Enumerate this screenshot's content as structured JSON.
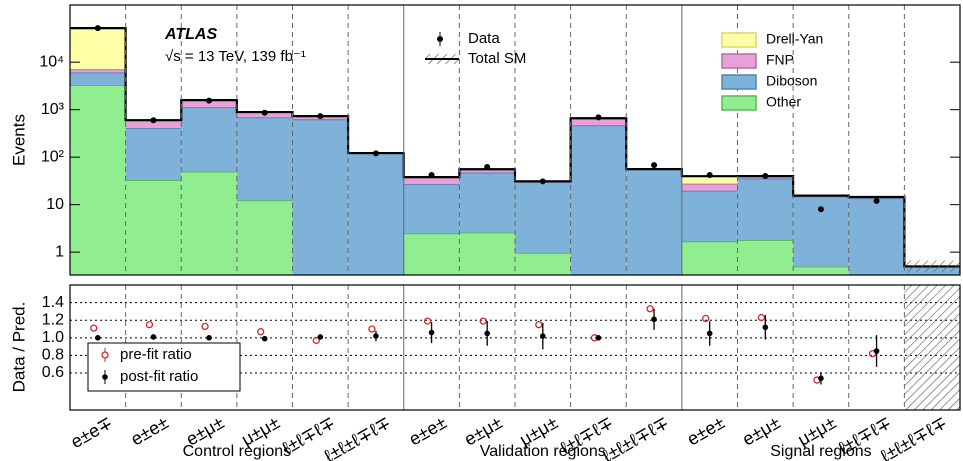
{
  "chart_data": {
    "type": "stacked_histogram",
    "ylabel": "Events",
    "log_y": true,
    "ylim": [
      0.33,
      160000
    ],
    "yticks": [
      1,
      10,
      {
        "value": 100,
        "label": "10²"
      },
      {
        "value": 1000,
        "label": "10³"
      },
      {
        "value": 10000,
        "label": "10⁴"
      }
    ],
    "annotations": [
      "ATLAS",
      "√s = 13 TeV, 139 fb⁻¹"
    ],
    "groups": [
      {
        "label": "Control regions",
        "categories": [
          "e±e∓",
          "e±e±",
          "e±μ±",
          "μ±μ±",
          "ℓ±ℓ∓ℓ∓",
          "ℓ±ℓ±ℓ∓ℓ∓"
        ]
      },
      {
        "label": "Validation regions",
        "categories": [
          "e±e±",
          "e±μ±",
          "μ±μ±",
          "ℓ±ℓ∓ℓ∓",
          "ℓ±ℓ±ℓ∓ℓ∓"
        ]
      },
      {
        "label": "Signal regions",
        "categories": [
          "e±e±",
          "e±μ±",
          "μ±μ±",
          "ℓ±ℓ∓ℓ∓",
          "ℓ±ℓ±ℓ∓ℓ∓"
        ]
      }
    ],
    "stack": [
      {
        "name": "Other",
        "color": "#90ee90",
        "edgecolor": "#5cb85c",
        "values": [
          3300,
          33,
          50,
          12.4,
          0,
          0,
          2.5,
          2.6,
          0.97,
          0,
          0,
          1.7,
          1.8,
          0.5,
          0,
          0
        ]
      },
      {
        "name": "Diboson",
        "color": "#7fb2d8",
        "edgecolor": "#4f86b4",
        "values": [
          2800,
          377,
          1080,
          678,
          630,
          120,
          24.5,
          45,
          29,
          470,
          56,
          18,
          34,
          14.5,
          13.7,
          0.5
        ]
      },
      {
        "name": "FNP",
        "color": "#e8a0d8",
        "edgecolor": "#b070a8",
        "values": [
          1000,
          190,
          460,
          200,
          100,
          2,
          11,
          8,
          1,
          190,
          0,
          8,
          4,
          0.5,
          0.8,
          0
        ]
      },
      {
        "name": "Drell-Yan",
        "color": "#ffffa8",
        "edgecolor": "#d8d860",
        "values": [
          45000,
          0,
          0,
          0,
          0,
          0,
          0,
          0,
          0,
          0,
          0,
          12,
          0,
          0,
          0,
          0
        ]
      }
    ],
    "data": {
      "name": "Data",
      "color": "#000000",
      "values": [
        52000,
        600,
        1550,
        860,
        730,
        120,
        42,
        62,
        31,
        690,
        68,
        42,
        40,
        8,
        12,
        null
      ]
    },
    "total_label": "Total SM",
    "ratio": {
      "ylabel": "Data / Pred.",
      "ylim": [
        0.18,
        1.6
      ],
      "yticks": [
        0.6,
        0.8,
        {
          "value": 1.0,
          "label": "1.0"
        },
        1.2,
        1.4
      ],
      "series": [
        {
          "name": "pre-fit ratio",
          "color": "#d02828",
          "values": [
            1.11,
            1.15,
            1.13,
            1.07,
            0.97,
            1.1,
            1.19,
            1.19,
            1.15,
            1.0,
            1.33,
            1.22,
            1.23,
            0.52,
            0.82,
            null
          ]
        },
        {
          "name": "post-fit ratio",
          "color": "#000000",
          "values": [
            1.0,
            1.01,
            1.0,
            0.99,
            1.01,
            1.02,
            1.06,
            1.05,
            1.02,
            1.0,
            1.21,
            1.05,
            1.12,
            0.54,
            0.85,
            null
          ],
          "errors": [
            0.01,
            0.02,
            0.02,
            0.02,
            0.03,
            0.06,
            0.12,
            0.14,
            0.15,
            0.02,
            0.12,
            0.14,
            0.14,
            0.07,
            0.18,
            null
          ]
        }
      ]
    }
  }
}
